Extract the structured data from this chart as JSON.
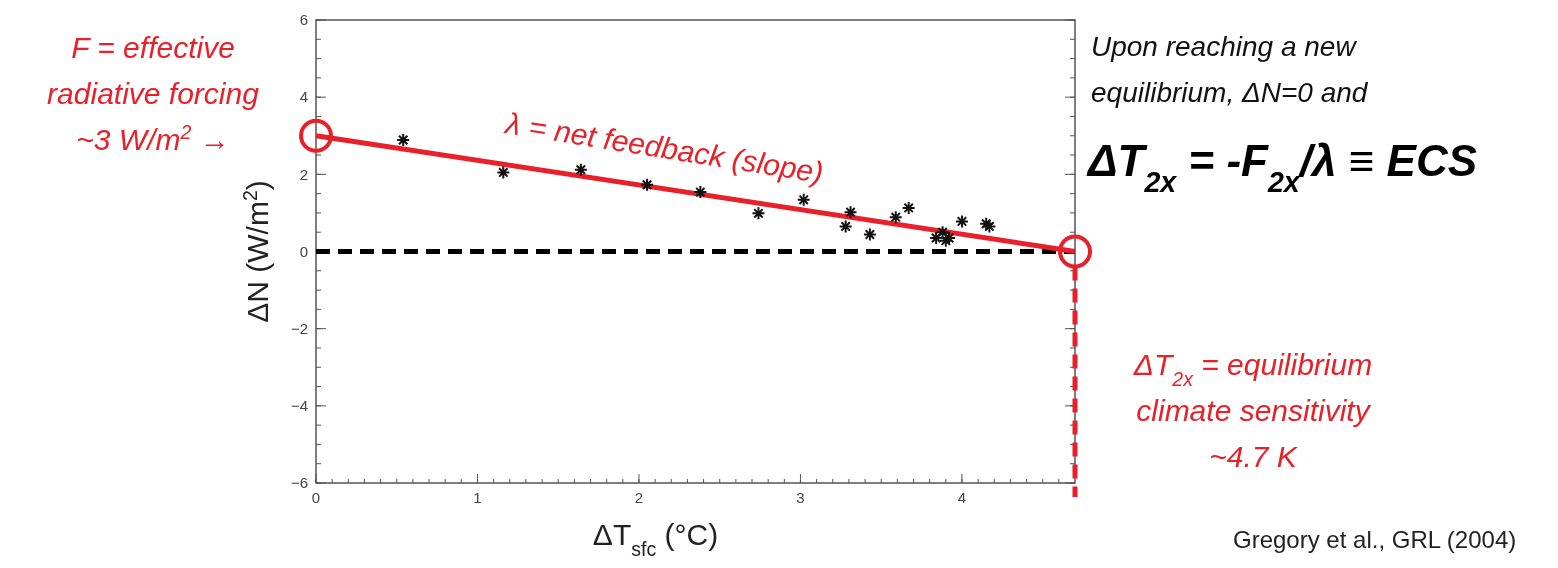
{
  "chart_data": {
    "type": "scatter",
    "xlabel": "ΔT$_{sfc}$ (°C)",
    "ylabel": "ΔN (W/m$^{2}$)",
    "xlim": [
      0,
      4.7
    ],
    "xticks": [
      0,
      1,
      2,
      3,
      4
    ],
    "ylim": [
      -6,
      6
    ],
    "yticks": [
      -6,
      -4,
      -2,
      0,
      2,
      4,
      6
    ],
    "marker": "cross",
    "grid": false,
    "series": [
      {
        "color": "#111111",
        "x": [
          0.54,
          1.16,
          1.64,
          2.05,
          2.38,
          2.74,
          3.02,
          3.28,
          3.31,
          3.43,
          3.59,
          3.67,
          3.84,
          3.88,
          3.9,
          3.92,
          4.0,
          4.15,
          4.17
        ],
        "values": [
          2.89,
          2.05,
          2.12,
          1.73,
          1.54,
          0.99,
          1.34,
          0.65,
          1.02,
          0.44,
          0.89,
          1.13,
          0.35,
          0.5,
          0.28,
          0.35,
          0.78,
          0.72,
          0.65
        ]
      },
      {
        "type": "line",
        "color": "#e8202a",
        "marker": "circle",
        "x": [
          0,
          4.7
        ],
        "values": [
          3,
          0
        ]
      }
    ],
    "ref_lines": [
      {
        "axis": "y",
        "value": 0,
        "color": "#000000",
        "line_style": "dashed"
      },
      {
        "axis": "x",
        "value": 4.7,
        "color": "#e8202a",
        "line_style": "dashed"
      }
    ],
    "annotations": [
      "F = effective\nradiative forcing\n~3 W/m$^{2}$  →",
      "λ = net feedback (slope)",
      "Upon reaching a new\nequilibrium, ΔN=0 and",
      "ΔT$_{2x}$ = -F$_{2x}$/λ ≡ ECS",
      "ΔT$_{2x}$ = equilibrium\nclimate sensitivity\n~4.7 K",
      "Gregory et al., GRL (2004)"
    ]
  }
}
